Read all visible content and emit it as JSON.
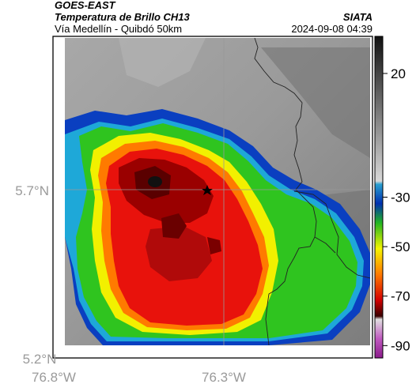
{
  "header": {
    "satellite": "GOES-EAST",
    "product": "Temperatura de Brillo CH13",
    "region": "Vía Medellín - Quibdó 50km",
    "brand": "SIATA",
    "timestamp": "2024-09-08 04:39"
  },
  "axes": {
    "lat_labels": [
      "5.7°N",
      "5.2°N"
    ],
    "lon_labels": [
      "76.8°W",
      "76.3°W"
    ]
  },
  "colorbar": {
    "tick_labels": [
      "20",
      "-30",
      "-50",
      "-70",
      "-90"
    ],
    "ticks": [
      20,
      -30,
      -50,
      -70,
      -90
    ],
    "range": [
      -95,
      35
    ]
  },
  "marker": {
    "icon": "star-icon"
  },
  "colors": {
    "cloud_warm_gray": "#8a8a8a",
    "cloud_cold_blue": "#0a3fc0",
    "cyan": "#1ea8d8",
    "green": "#2fc41f",
    "yellow": "#f2f000",
    "orange": "#ff7a00",
    "red": "#e8120c",
    "dark_red": "#7a0000"
  }
}
